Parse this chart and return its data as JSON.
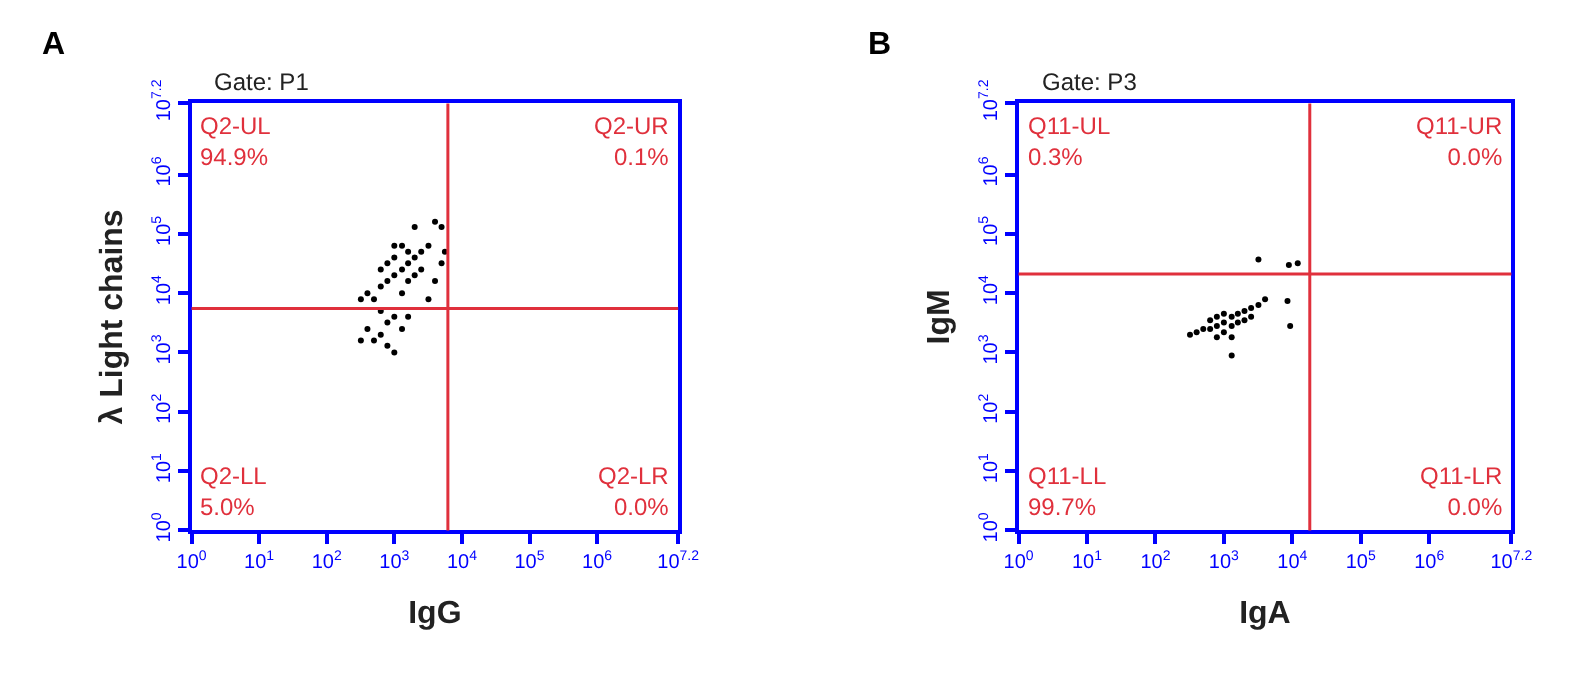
{
  "chart_data": [
    {
      "type": "scatter",
      "title": "A",
      "subtitle": "Gate: P1",
      "xlabel": "IgG",
      "ylabel": "λ Light chains",
      "log": "xy",
      "marker": "circle",
      "xlim": [
        1,
        15848932
      ],
      "ylim": [
        1,
        15848932
      ],
      "xticks": [
        {
          "value": 1,
          "label": "10$^{0}$"
        },
        {
          "value": 10,
          "label": "10$^{1}$"
        },
        {
          "value": 100,
          "label": "10$^{2}$"
        },
        {
          "value": 1000,
          "label": "10$^{3}$"
        },
        {
          "value": 10000,
          "label": "10$^{4}$"
        },
        {
          "value": 100000,
          "label": "10$^{5}$"
        },
        {
          "value": 1000000,
          "label": "10$^{6}$"
        },
        {
          "value": 15848932,
          "label": "10$^{7.2}$"
        }
      ],
      "yticks": [
        {
          "value": 1,
          "label": "10$^{0}$"
        },
        {
          "value": 10,
          "label": "10$^{1}$"
        },
        {
          "value": 100,
          "label": "10$^{2}$"
        },
        {
          "value": 1000,
          "label": "10$^{3}$"
        },
        {
          "value": 10000,
          "label": "10$^{4}$"
        },
        {
          "value": 100000,
          "label": "10$^{5}$"
        },
        {
          "value": 1000000,
          "label": "10$^{6}$"
        },
        {
          "value": 15848932,
          "label": "10$^{7.2}$"
        }
      ],
      "ref_lines": [
        {
          "axis": "x",
          "value": 6200,
          "color": "#e0303c"
        },
        {
          "axis": "y",
          "value": 5500,
          "color": "#e0303c"
        }
      ],
      "annotations": [
        "Q2-UL\n94.9%",
        "Q2-UR\n0.1%",
        "Q2-LL\n5.0%",
        "Q2-LR\n0.0%"
      ],
      "series": [
        {
          "color": "#000000",
          "x": [
            1300,
            1000,
            1600,
            790,
            2000,
            630,
            2500,
            1000,
            1600,
            790,
            2000,
            1300,
            1300,
            630,
            2500,
            3200,
            500,
            1000,
            790,
            630,
            1000,
            500,
            790,
            1300,
            400,
            1000,
            630,
            1600,
            320,
            4000,
            5000,
            5600,
            5000,
            320,
            400,
            3200,
            2000,
            4000,
            1600
          ],
          "values": [
            25000,
            20000,
            32000,
            16000,
            40000,
            13000,
            50000,
            40000,
            16000,
            32000,
            20000,
            63000,
            10000,
            25000,
            25000,
            63000,
            7900,
            63000,
            3200,
            2000,
            4000,
            1600,
            1300,
            2500,
            2500,
            1000,
            5000,
            4000,
            1600,
            160000,
            130000,
            50000,
            32000,
            7900,
            10000,
            7900,
            130000,
            16000,
            50000
          ]
        }
      ]
    },
    {
      "type": "scatter",
      "title": "B",
      "subtitle": "Gate: P3",
      "xlabel": "IgA",
      "ylabel": "IgM",
      "log": "xy",
      "marker": "circle",
      "xlim": [
        1,
        15848932
      ],
      "ylim": [
        1,
        15848932
      ],
      "xticks": [
        {
          "value": 1,
          "label": "10$^{0}$"
        },
        {
          "value": 10,
          "label": "10$^{1}$"
        },
        {
          "value": 100,
          "label": "10$^{2}$"
        },
        {
          "value": 1000,
          "label": "10$^{3}$"
        },
        {
          "value": 10000,
          "label": "10$^{4}$"
        },
        {
          "value": 100000,
          "label": "10$^{5}$"
        },
        {
          "value": 1000000,
          "label": "10$^{6}$"
        },
        {
          "value": 15848932,
          "label": "10$^{7.2}$"
        }
      ],
      "yticks": [
        {
          "value": 1,
          "label": "10$^{0}$"
        },
        {
          "value": 10,
          "label": "10$^{1}$"
        },
        {
          "value": 100,
          "label": "10$^{2}$"
        },
        {
          "value": 1000,
          "label": "10$^{3}$"
        },
        {
          "value": 10000,
          "label": "10$^{4}$"
        },
        {
          "value": 100000,
          "label": "10$^{5}$"
        },
        {
          "value": 1000000,
          "label": "10$^{6}$"
        },
        {
          "value": 15848932,
          "label": "10$^{7.2}$"
        }
      ],
      "ref_lines": [
        {
          "axis": "x",
          "value": 18000,
          "color": "#e0303c"
        },
        {
          "axis": "y",
          "value": 21000,
          "color": "#e0303c"
        }
      ],
      "annotations": [
        "Q11-UL\n0.3%",
        "Q11-UR\n0.0%",
        "Q11-LL\n99.7%",
        "Q11-LR\n0.0%"
      ],
      "series": [
        {
          "color": "#000000",
          "x": [
            1000,
            1300,
            790,
            1600,
            630,
            2000,
            500,
            2500,
            1000,
            1300,
            790,
            1600,
            400,
            3200,
            1000,
            2000,
            630,
            4000,
            320,
            1300,
            790,
            2500,
            1300,
            3200,
            8900,
            12000,
            9300,
            8500
          ],
          "values": [
            3200,
            4000,
            2800,
            4500,
            2500,
            5000,
            2500,
            5600,
            4500,
            2800,
            4000,
            3200,
            2200,
            6300,
            2200,
            3500,
            3500,
            7900,
            2000,
            1800,
            1800,
            4000,
            890,
            37000,
            30000,
            32000,
            2800,
            7400
          ]
        }
      ]
    }
  ]
}
